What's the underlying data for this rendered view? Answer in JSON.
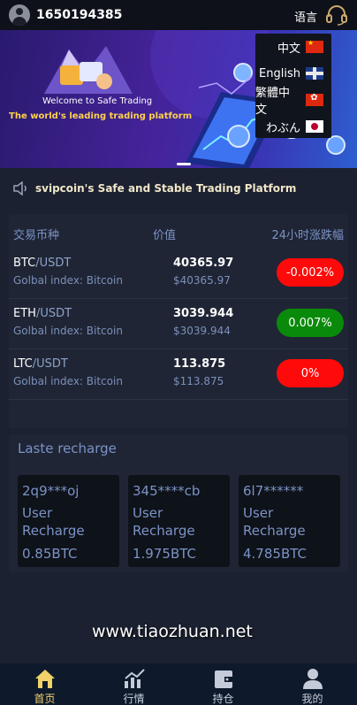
{
  "header": {
    "username": "1650194385",
    "language_label": "语言"
  },
  "banner": {
    "title": "Welcome to Safe Trading",
    "subtitle": "The world's leading trading platform"
  },
  "language_menu": {
    "items": [
      {
        "label": "中文",
        "flag": "china-flag-icon"
      },
      {
        "label": "English",
        "flag": "uk-flag-icon"
      },
      {
        "label": "繁體中文",
        "flag": "hong-kong-flag-icon"
      },
      {
        "label": "わぶん",
        "flag": "japan-flag-icon"
      }
    ]
  },
  "notice": {
    "text": "svipcoin's Safe and Stable Trading Platform"
  },
  "market": {
    "headers": {
      "pair": "交易币种",
      "value": "价值",
      "change": "24小时涨跌幅"
    },
    "rows": [
      {
        "base": "BTC",
        "quote": "/USDT",
        "index": "Golbal index: Bitcoin",
        "price": "40365.97",
        "usd": "$40365.97",
        "change": "-0.002%",
        "color": "#ff0a0a"
      },
      {
        "base": "ETH",
        "quote": "/USDT",
        "index": "Golbal index: Bitcoin",
        "price": "3039.944",
        "usd": "$3039.944",
        "change": "0.007%",
        "color": "#0a8a0a"
      },
      {
        "base": "LTC",
        "quote": "/USDT",
        "index": "Golbal index: Bitcoin",
        "price": "113.875",
        "usd": "$113.875",
        "change": "0%",
        "color": "#ff0a0a"
      }
    ]
  },
  "recharge": {
    "title": "Laste recharge",
    "cards": [
      {
        "name": "2q9***oj",
        "label": "User Recharge",
        "amount": "0.85BTC"
      },
      {
        "name": "345****cb",
        "label": "User Recharge",
        "amount": "1.975BTC"
      },
      {
        "name": "6l7******",
        "label": "User Recharge",
        "amount": "4.785BTC"
      }
    ]
  },
  "watermark": "www.tiaozhuan.net",
  "tabbar": {
    "items": [
      {
        "label": "首页",
        "icon": "home-icon"
      },
      {
        "label": "行情",
        "icon": "chart-icon"
      },
      {
        "label": "持仓",
        "icon": "wallet-icon"
      },
      {
        "label": "我的",
        "icon": "profile-icon"
      }
    ]
  },
  "colors": {
    "background": "#1b2130",
    "panel": "#1f2535",
    "accent_text": "#7b93c6",
    "active_tab": "#f2d16b",
    "negative": "#ff0a0a",
    "positive": "#0a8a0a"
  }
}
